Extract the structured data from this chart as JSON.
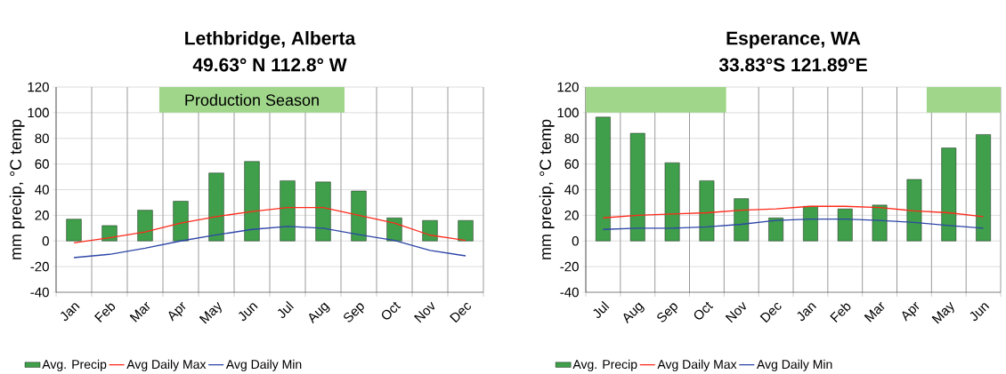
{
  "chart_data": [
    {
      "type": "bar",
      "title": "Lethbridge, Alberta",
      "subtitle": "49.63° N 112.8° W",
      "ylabel": "mm precip, °C temp",
      "categories": [
        "Jan",
        "Feb",
        "Mar",
        "Apr",
        "May",
        "Jun",
        "Jul",
        "Aug",
        "Sep",
        "Oct",
        "Nov",
        "Dec"
      ],
      "series": [
        {
          "name": "Avg. Precip",
          "color": "#3f9f4a",
          "values": [
            17,
            12,
            24,
            31,
            53,
            62,
            47,
            46,
            39,
            18,
            16,
            16
          ]
        },
        {
          "name": "Avg Daily Max",
          "type": "line",
          "color": "#ff2a1a",
          "values": [
            -1.5,
            2.5,
            7,
            14,
            19,
            23,
            26,
            26,
            20,
            14,
            4.5,
            0.5
          ]
        },
        {
          "name": "Avg Daily Min",
          "type": "line",
          "color": "#2e46a8",
          "values": [
            -13,
            -10.4,
            -5.7,
            0,
            4.7,
            9,
            11.4,
            10,
            5,
            0.5,
            -7.4,
            -11.6
          ]
        }
      ],
      "ylim": [
        -40,
        120
      ],
      "yticks": [
        -40,
        -20,
        0,
        20,
        40,
        60,
        80,
        100,
        120
      ],
      "grid": true,
      "legend": "bottom",
      "annotations": [
        "Production Season"
      ]
    },
    {
      "type": "bar",
      "title": "Esperance, WA",
      "subtitle": "33.83°S 121.89°E",
      "ylabel": "mm precip, °C temp",
      "categories": [
        "Jul",
        "Aug",
        "Sep",
        "Oct",
        "Nov",
        "Dec",
        "Jan",
        "Feb",
        "Mar",
        "Apr",
        "May",
        "Jun"
      ],
      "series": [
        {
          "name": "Avg. Precip",
          "color": "#3f9f4a",
          "values": [
            96.6,
            84,
            61,
            47,
            33,
            18,
            27,
            25,
            28,
            48,
            72.5,
            83
          ]
        },
        {
          "name": "Avg Daily Max",
          "type": "line",
          "color": "#ff2a1a",
          "values": [
            18,
            20,
            21,
            22,
            24,
            25,
            27,
            27,
            26,
            23.5,
            22,
            19
          ]
        },
        {
          "name": "Avg Daily Min",
          "type": "line",
          "color": "#2e46a8",
          "values": [
            9,
            10,
            10,
            11,
            13,
            16,
            17,
            17,
            16,
            14.5,
            12,
            10
          ]
        }
      ],
      "ylim": [
        -40,
        120
      ],
      "yticks": [
        -40,
        -20,
        0,
        20,
        40,
        60,
        80,
        100,
        120
      ],
      "grid": true,
      "legend": "bottom"
    }
  ]
}
